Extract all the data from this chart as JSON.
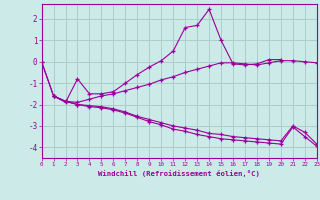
{
  "xlabel": "Windchill (Refroidissement éolien,°C)",
  "background_color": "#cceae8",
  "line_color": "#990099",
  "grid_color": "#aacccc",
  "x_min": 0,
  "x_max": 23,
  "y_min": -4.5,
  "y_max": 2.7,
  "lines": [
    {
      "x": [
        0,
        1,
        2,
        3,
        4,
        5,
        6,
        7,
        8,
        9,
        10,
        11,
        12,
        13,
        14,
        15,
        16,
        17,
        18,
        19,
        20
      ],
      "y": [
        0.0,
        -1.6,
        -1.9,
        -0.8,
        -1.5,
        -1.5,
        -1.4,
        -1.0,
        -0.6,
        -0.25,
        0.05,
        0.5,
        1.6,
        1.7,
        2.45,
        1.0,
        -0.1,
        -0.15,
        -0.1,
        0.1,
        0.1
      ]
    },
    {
      "x": [
        0,
        1,
        2,
        3,
        4,
        5,
        6,
        7,
        8,
        9,
        10,
        11,
        12,
        13,
        14,
        15,
        16,
        17,
        18,
        19,
        20,
        21,
        22,
        23
      ],
      "y": [
        0.0,
        -1.6,
        -1.85,
        -1.9,
        -1.75,
        -1.6,
        -1.5,
        -1.35,
        -1.2,
        -1.05,
        -0.85,
        -0.7,
        -0.5,
        -0.35,
        -0.2,
        -0.05,
        -0.05,
        -0.1,
        -0.15,
        -0.05,
        0.05,
        0.05,
        0.0,
        -0.05
      ]
    },
    {
      "x": [
        1,
        2,
        3,
        4,
        5,
        6,
        7,
        8,
        9,
        10,
        11,
        12,
        13,
        14,
        15,
        16,
        17,
        18,
        19,
        20,
        21,
        22,
        23
      ],
      "y": [
        -1.6,
        -1.85,
        -2.0,
        -2.05,
        -2.1,
        -2.2,
        -2.35,
        -2.55,
        -2.7,
        -2.85,
        -3.0,
        -3.1,
        -3.2,
        -3.35,
        -3.4,
        -3.5,
        -3.55,
        -3.6,
        -3.65,
        -3.7,
        -3.0,
        -3.3,
        -3.85
      ]
    },
    {
      "x": [
        1,
        2,
        3,
        4,
        5,
        6,
        7,
        8,
        9,
        10,
        11,
        12,
        13,
        14,
        15,
        16,
        17,
        18,
        19,
        20,
        21,
        22,
        23
      ],
      "y": [
        -1.6,
        -1.85,
        -2.0,
        -2.1,
        -2.15,
        -2.25,
        -2.4,
        -2.6,
        -2.8,
        -2.95,
        -3.15,
        -3.25,
        -3.4,
        -3.5,
        -3.6,
        -3.65,
        -3.7,
        -3.75,
        -3.8,
        -3.85,
        -3.05,
        -3.5,
        -3.95
      ]
    }
  ],
  "xticks": [
    0,
    1,
    2,
    3,
    4,
    5,
    6,
    7,
    8,
    9,
    10,
    11,
    12,
    13,
    14,
    15,
    16,
    17,
    18,
    19,
    20,
    21,
    22,
    23
  ],
  "yticks": [
    -4,
    -3,
    -2,
    -1,
    0,
    1,
    2
  ]
}
